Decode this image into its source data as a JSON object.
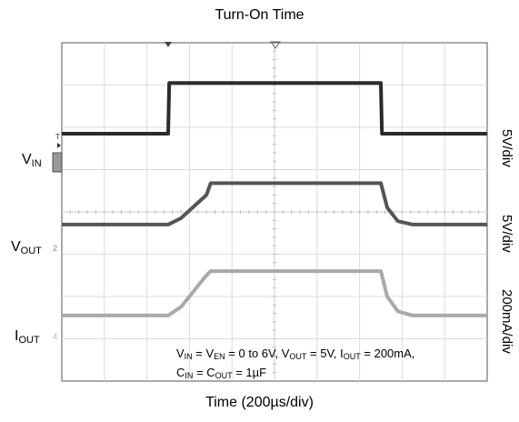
{
  "chart_data": {
    "type": "line",
    "title": "Turn-On Time",
    "xlabel": "Time (200µs/div)",
    "x_divisions": 10,
    "y_divisions": 8,
    "xlim_us": [
      0,
      2000
    ],
    "conditions": {
      "line1": "V_IN = V_EN = 0 to 6V, V_OUT = 5V, I_OUT = 200mA,",
      "line2": "C_IN = C_OUT = 1µF"
    },
    "series": [
      {
        "name": "V_IN",
        "label_main": "V",
        "label_sub": "IN",
        "scale": "5V/div",
        "color": "#2b2b2b",
        "stroke": 4,
        "baseline_div": 2.15,
        "points_us_div": [
          [
            0,
            0
          ],
          [
            500,
            0
          ],
          [
            505,
            1.2
          ],
          [
            1500,
            1.2
          ],
          [
            1505,
            0
          ],
          [
            2000,
            0
          ]
        ]
      },
      {
        "name": "V_OUT",
        "label_main": "V",
        "label_sub": "OUT",
        "scale": "5V/div",
        "color": "#555555",
        "stroke": 4,
        "baseline_div": 4.3,
        "points_us_div": [
          [
            0,
            0
          ],
          [
            500,
            0
          ],
          [
            560,
            0.15
          ],
          [
            680,
            0.7
          ],
          [
            700,
            0.98
          ],
          [
            1500,
            0.98
          ],
          [
            1530,
            0.4
          ],
          [
            1580,
            0.08
          ],
          [
            1650,
            0
          ],
          [
            2000,
            0
          ]
        ]
      },
      {
        "name": "I_OUT",
        "label_main": "I",
        "label_sub": "OUT",
        "scale": "200mA/div",
        "color": "#a9a9a9",
        "stroke": 4,
        "baseline_div": 6.45,
        "points_us_div": [
          [
            0,
            0
          ],
          [
            500,
            0
          ],
          [
            560,
            0.2
          ],
          [
            680,
            0.95
          ],
          [
            700,
            1.05
          ],
          [
            1500,
            1.05
          ],
          [
            1530,
            0.45
          ],
          [
            1580,
            0.1
          ],
          [
            1650,
            0
          ],
          [
            2000,
            0
          ]
        ]
      }
    ]
  }
}
